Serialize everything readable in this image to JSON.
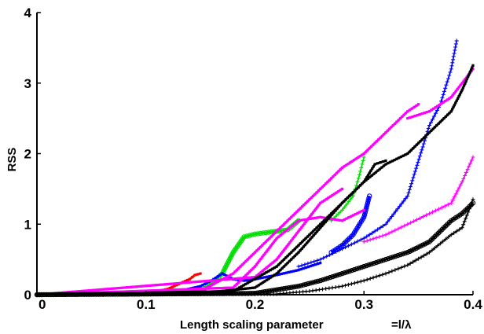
{
  "chart_data": {
    "type": "line",
    "xlabel": "Length scaling parameter",
    "xlabel_suffix": "=l/λ",
    "ylabel": "RSS",
    "xlim": [
      0,
      0.4
    ],
    "ylim": [
      0,
      4
    ],
    "grid": false,
    "legend": "none",
    "x_ticks": [
      0,
      0.1,
      0.2,
      0.3,
      0.4
    ],
    "x_tick_labels": [
      "0",
      "0.1",
      "0.2",
      "0.3",
      "0.4"
    ],
    "y_ticks": [
      0,
      1,
      2,
      3,
      4
    ],
    "y_tick_labels": [
      "0",
      "1",
      "2",
      "3",
      "4"
    ],
    "series": [
      {
        "color": "#ff0000",
        "marker": "square",
        "x": [
          0,
          0.05,
          0.1,
          0.12,
          0.13,
          0.14,
          0.145,
          0.15
        ],
        "y": [
          0,
          0,
          0.02,
          0.08,
          0.15,
          0.22,
          0.28,
          0.3
        ]
      },
      {
        "color": "#00dd00",
        "marker": "circle",
        "x": [
          0,
          0.1,
          0.15,
          0.16,
          0.17,
          0.18,
          0.19,
          0.2,
          0.21,
          0.22,
          0.23,
          0.24
        ],
        "y": [
          0,
          0.01,
          0.05,
          0.15,
          0.3,
          0.6,
          0.82,
          0.86,
          0.88,
          0.9,
          0.92,
          1.05
        ]
      },
      {
        "color": "#00dd00",
        "marker": "plus",
        "x": [
          0.27,
          0.28,
          0.29,
          0.295,
          0.3
        ],
        "y": [
          1.05,
          1.2,
          1.4,
          1.65,
          1.95
        ]
      },
      {
        "color": "#0000ff",
        "marker": "square",
        "x": [
          0,
          0.1,
          0.13,
          0.15,
          0.16,
          0.17,
          0.18,
          0.19,
          0.2,
          0.22,
          0.24,
          0.26
        ],
        "y": [
          0,
          0.01,
          0.05,
          0.12,
          0.2,
          0.3,
          0.22,
          0.2,
          0.22,
          0.28,
          0.35,
          0.45
        ]
      },
      {
        "color": "#0000ff",
        "marker": "plus",
        "x": [
          0.24,
          0.26,
          0.28,
          0.3,
          0.32,
          0.34,
          0.36,
          0.37,
          0.38,
          0.385
        ],
        "y": [
          0.4,
          0.5,
          0.65,
          0.8,
          1.0,
          1.4,
          2.4,
          2.7,
          3.2,
          3.6
        ]
      },
      {
        "color": "#0000ff",
        "marker": "circle",
        "x": [
          0.27,
          0.28,
          0.29,
          0.3,
          0.305
        ],
        "y": [
          0.6,
          0.7,
          0.85,
          1.1,
          1.4
        ]
      },
      {
        "color": "#ff00ff",
        "marker": "square",
        "x": [
          0,
          0.15,
          0.18,
          0.2,
          0.22,
          0.24,
          0.26,
          0.28,
          0.3,
          0.32,
          0.34,
          0.35
        ],
        "y": [
          0,
          0.05,
          0.3,
          0.6,
          0.9,
          1.2,
          1.5,
          1.8,
          2.0,
          2.3,
          2.6,
          2.7
        ]
      },
      {
        "color": "#ff00ff",
        "marker": "square",
        "x": [
          0,
          0.18,
          0.2,
          0.22,
          0.24,
          0.26,
          0.28,
          0.3
        ],
        "y": [
          0,
          0.1,
          0.4,
          0.8,
          1.05,
          1.1,
          1.05,
          1.2
        ]
      },
      {
        "color": "#ff00ff",
        "marker": "square",
        "x": [
          0,
          0.2,
          0.22,
          0.24,
          0.26,
          0.28
        ],
        "y": [
          0,
          0.25,
          0.5,
          0.9,
          1.3,
          1.5
        ]
      },
      {
        "color": "#ff00ff",
        "marker": "plus",
        "x": [
          0.3,
          0.32,
          0.34,
          0.36,
          0.38,
          0.39,
          0.4
        ],
        "y": [
          0.75,
          0.85,
          1.0,
          1.15,
          1.3,
          1.6,
          1.95
        ]
      },
      {
        "color": "#ff00ff",
        "marker": "square",
        "x": [
          0.34,
          0.36,
          0.38,
          0.39,
          0.4
        ],
        "y": [
          2.5,
          2.6,
          2.8,
          3.0,
          3.2
        ]
      },
      {
        "color": "#000000",
        "marker": "square",
        "x": [
          0,
          0.15,
          0.2,
          0.22,
          0.24,
          0.26,
          0.28,
          0.3,
          0.32,
          0.34,
          0.36,
          0.38,
          0.39,
          0.4
        ],
        "y": [
          0,
          0.02,
          0.1,
          0.3,
          0.6,
          0.95,
          1.3,
          1.6,
          1.85,
          2.0,
          2.3,
          2.6,
          2.9,
          3.25
        ]
      },
      {
        "color": "#000000",
        "marker": "square",
        "x": [
          0,
          0.18,
          0.22,
          0.24,
          0.26,
          0.28,
          0.3,
          0.31,
          0.32
        ],
        "y": [
          0,
          0.05,
          0.4,
          0.7,
          1.0,
          1.3,
          1.6,
          1.85,
          1.9
        ]
      },
      {
        "color": "#000000",
        "marker": "circle",
        "x": [
          0,
          0.2,
          0.24,
          0.26,
          0.28,
          0.3,
          0.32,
          0.34,
          0.36,
          0.38,
          0.39,
          0.4
        ],
        "y": [
          0,
          0.02,
          0.12,
          0.2,
          0.3,
          0.4,
          0.5,
          0.6,
          0.75,
          1.05,
          1.15,
          1.3
        ]
      },
      {
        "color": "#000000",
        "marker": "plus",
        "x": [
          0,
          0.22,
          0.25,
          0.28,
          0.3,
          0.32,
          0.34,
          0.36,
          0.38,
          0.39,
          0.4
        ],
        "y": [
          0,
          0.01,
          0.05,
          0.12,
          0.2,
          0.3,
          0.42,
          0.6,
          0.85,
          0.95,
          1.35
        ]
      }
    ]
  }
}
